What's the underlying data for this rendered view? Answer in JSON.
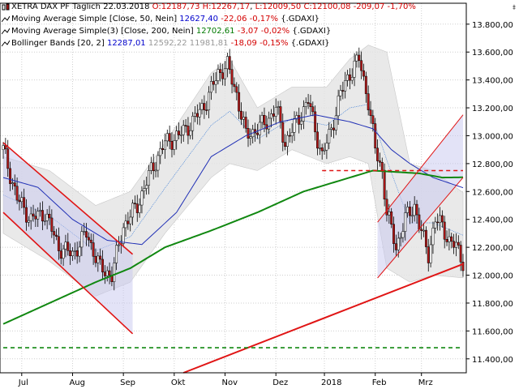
{
  "legend": {
    "main": {
      "prefix": "XETRA DAX PF Täglich",
      "date": "22.03.2018",
      "o": "O:12187,73",
      "h": "H:12267,17",
      "l": "L:12009,50",
      "c": "C:12100,08",
      "chg": "-209,07",
      "pct": "-1,70%"
    },
    "sma50": {
      "label": "Moving Average Simple [Close, 50, Nein]",
      "value": "12627,40",
      "chg": "-22,06",
      "pct": "-0,17%",
      "sym": "{.GDAXI}"
    },
    "sma200": {
      "label": "Moving Average Simple(3) [Close, 200, Nein]",
      "value": "12702,61",
      "chg": "-3,07",
      "pct": "-0,02%",
      "sym": "{.GDAXI}"
    },
    "bb": {
      "label": "Bollinger Bands [20, 2]",
      "v1": "12287,01",
      "v2": "12592,22",
      "v3": "11981,81",
      "chg": "-18,09",
      "pct": "-0,15%",
      "sym": "{.GDAXI}"
    }
  },
  "corner_icon": "expand-icon",
  "colors": {
    "up": "#ffffff",
    "down": "#b21818",
    "sma50": "#1f2fb5",
    "sma200": "#118811",
    "channel": "#e01515",
    "band": "#d0d0d0"
  },
  "chart_data": {
    "type": "candlestick",
    "y_ticks": [
      "11.400,00",
      "11.600,00",
      "11.800,00",
      "12.000,00",
      "12.200,00",
      "12.400,00",
      "12.600,00",
      "12.800,00",
      "13.000,00",
      "13.200,00",
      "13.400,00",
      "13.600,00",
      "13.800,00"
    ],
    "y_tick_values": [
      11400,
      11600,
      11800,
      12000,
      12200,
      12400,
      12600,
      12800,
      13000,
      13200,
      13400,
      13600,
      13800
    ],
    "ylim": [
      11300,
      13950
    ],
    "x_labels": [
      "Jul",
      "Aug",
      "Sep",
      "Okt",
      "Nov",
      "Dez",
      "2018",
      "Feb",
      "Mrz"
    ],
    "x_label_index": [
      8,
      30,
      52,
      74,
      96,
      118,
      139,
      161,
      181
    ],
    "grid": true,
    "price_path": [
      [
        0,
        12900
      ],
      [
        6,
        12550
      ],
      [
        12,
        12400
      ],
      [
        18,
        12450
      ],
      [
        24,
        12200
      ],
      [
        30,
        12150
      ],
      [
        36,
        12300
      ],
      [
        42,
        12050
      ],
      [
        47,
        12000
      ],
      [
        52,
        12350
      ],
      [
        58,
        12500
      ],
      [
        64,
        12750
      ],
      [
        70,
        12950
      ],
      [
        76,
        13000
      ],
      [
        82,
        13100
      ],
      [
        88,
        13250
      ],
      [
        93,
        13450
      ],
      [
        97,
        13500
      ],
      [
        101,
        13300
      ],
      [
        105,
        13000
      ],
      [
        110,
        13050
      ],
      [
        114,
        13100
      ],
      [
        118,
        13200
      ],
      [
        122,
        12950
      ],
      [
        127,
        13100
      ],
      [
        132,
        13250
      ],
      [
        138,
        12850
      ],
      [
        142,
        13050
      ],
      [
        146,
        13300
      ],
      [
        150,
        13450
      ],
      [
        154,
        13550
      ],
      [
        158,
        13250
      ],
      [
        161,
        12900
      ],
      [
        164,
        12750
      ],
      [
        166,
        12450
      ],
      [
        170,
        12200
      ],
      [
        174,
        12400
      ],
      [
        178,
        12500
      ],
      [
        181,
        12300
      ],
      [
        184,
        12150
      ],
      [
        187,
        12400
      ],
      [
        190,
        12350
      ],
      [
        193,
        12250
      ],
      [
        196,
        12200
      ],
      [
        199,
        12100
      ]
    ],
    "sma50_path": [
      [
        0,
        12700
      ],
      [
        15,
        12630
      ],
      [
        30,
        12400
      ],
      [
        45,
        12250
      ],
      [
        60,
        12220
      ],
      [
        75,
        12450
      ],
      [
        90,
        12850
      ],
      [
        105,
        13000
      ],
      [
        120,
        13100
      ],
      [
        135,
        13150
      ],
      [
        150,
        13100
      ],
      [
        160,
        13050
      ],
      [
        168,
        12900
      ],
      [
        176,
        12800
      ],
      [
        186,
        12700
      ],
      [
        199,
        12627
      ]
    ],
    "sma200_path": [
      [
        0,
        11650
      ],
      [
        20,
        11800
      ],
      [
        40,
        11950
      ],
      [
        55,
        12050
      ],
      [
        70,
        12200
      ],
      [
        90,
        12320
      ],
      [
        110,
        12450
      ],
      [
        130,
        12600
      ],
      [
        150,
        12700
      ],
      [
        160,
        12750
      ],
      [
        170,
        12740
      ],
      [
        180,
        12730
      ],
      [
        190,
        12700
      ],
      [
        199,
        12702
      ]
    ],
    "bb_upper": [
      [
        0,
        12850
      ],
      [
        20,
        12750
      ],
      [
        40,
        12500
      ],
      [
        55,
        12600
      ],
      [
        70,
        12950
      ],
      [
        90,
        13450
      ],
      [
        98,
        13550
      ],
      [
        110,
        13200
      ],
      [
        125,
        13350
      ],
      [
        140,
        13350
      ],
      [
        150,
        13550
      ],
      [
        158,
        13650
      ],
      [
        166,
        13600
      ],
      [
        176,
        12800
      ],
      [
        186,
        12750
      ],
      [
        199,
        12592
      ]
    ],
    "bb_lower": [
      [
        0,
        12300
      ],
      [
        20,
        12100
      ],
      [
        40,
        11850
      ],
      [
        55,
        11950
      ],
      [
        70,
        12300
      ],
      [
        90,
        12700
      ],
      [
        98,
        12800
      ],
      [
        110,
        12750
      ],
      [
        125,
        12900
      ],
      [
        140,
        12800
      ],
      [
        150,
        12850
      ],
      [
        158,
        12800
      ],
      [
        166,
        12050
      ],
      [
        176,
        11950
      ],
      [
        186,
        12000
      ],
      [
        199,
        11981
      ]
    ],
    "support_line": {
      "from": [
        78,
        11300
      ],
      "to": [
        199,
        12080
      ],
      "color": "#e01515"
    },
    "channel_upper": {
      "from": [
        0,
        12950
      ],
      "to": [
        56,
        12150
      ]
    },
    "channel_lower": {
      "from": [
        0,
        12450
      ],
      "to": [
        56,
        11580
      ]
    },
    "rising_channel_upper": {
      "from": [
        162,
        12380
      ],
      "to": [
        199,
        13150
      ]
    },
    "rising_channel_lower": {
      "from": [
        162,
        11980
      ],
      "to": [
        199,
        12700
      ]
    },
    "hline_red_dashed": {
      "y": 12750,
      "from": 138,
      "to": 199
    },
    "hline_green_dashed": {
      "y": 11480,
      "from": 0,
      "to": 199
    }
  }
}
